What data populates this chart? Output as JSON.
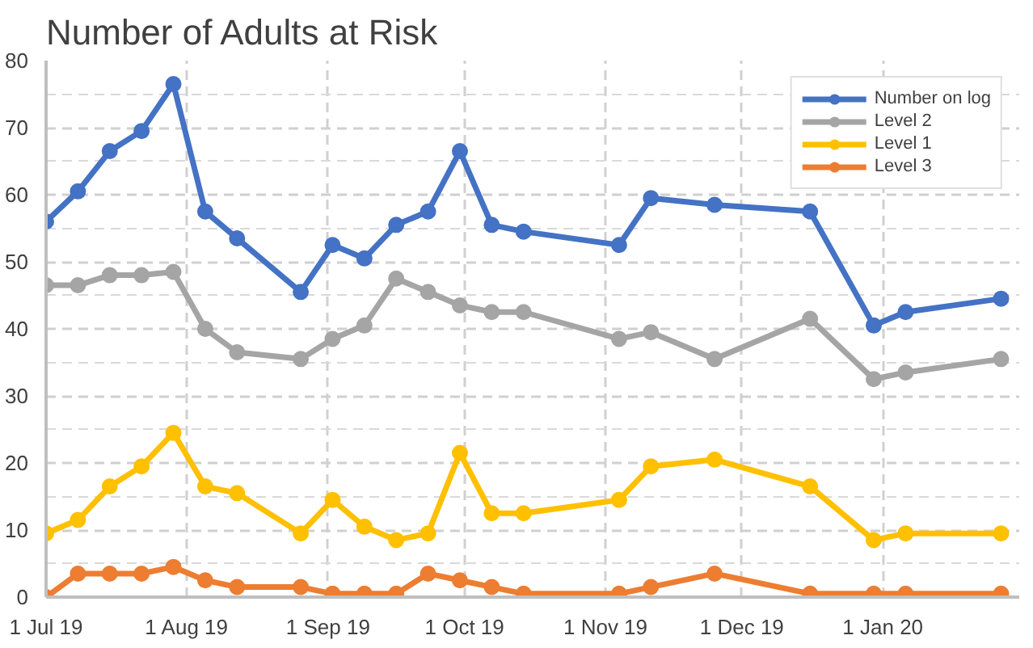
{
  "chart_data": {
    "type": "line",
    "title": "Number of Adults at Risk",
    "x": [
      "2019-07-01",
      "2019-07-08",
      "2019-07-15",
      "2019-07-22",
      "2019-07-29",
      "2019-08-05",
      "2019-08-12",
      "2019-08-26",
      "2019-09-02",
      "2019-09-09",
      "2019-09-16",
      "2019-09-23",
      "2019-09-30",
      "2019-10-07",
      "2019-10-14",
      "2019-11-04",
      "2019-11-11",
      "2019-11-25",
      "2019-12-16",
      "2019-12-30",
      "2020-01-06",
      "2020-01-27"
    ],
    "series": [
      {
        "name": "Number on log",
        "color": "#4472c4",
        "values": [
          56,
          60.5,
          66.5,
          69.5,
          76.5,
          57.5,
          53.5,
          45.5,
          52.5,
          50.5,
          55.5,
          57.5,
          66.5,
          55.5,
          54.5,
          52.5,
          59.5,
          58.5,
          57.5,
          40.5,
          42.5,
          44.5
        ]
      },
      {
        "name": "Level 2",
        "color": "#a5a5a5",
        "values": [
          46.5,
          46.5,
          48,
          48,
          48.5,
          40,
          36.5,
          35.5,
          38.5,
          40.5,
          47.5,
          45.5,
          43.5,
          42.5,
          42.5,
          38.5,
          39.5,
          35.5,
          41.5,
          32.5,
          33.5,
          35.5
        ]
      },
      {
        "name": "Level 1",
        "color": "#ffc000",
        "values": [
          9.5,
          11.5,
          16.5,
          19.5,
          24.5,
          16.5,
          15.5,
          9.5,
          14.5,
          10.5,
          8.5,
          9.5,
          21.5,
          12.5,
          12.5,
          14.5,
          19.5,
          20.5,
          16.5,
          8.5,
          9.5,
          9.5
        ]
      },
      {
        "name": "Level 3",
        "color": "#ed7d31",
        "values": [
          0,
          3.5,
          3.5,
          3.5,
          4.5,
          2.5,
          1.5,
          1.5,
          0.5,
          0.5,
          0.5,
          3.5,
          2.5,
          1.5,
          0.5,
          0.5,
          1.5,
          3.5,
          0.5,
          0.5,
          0.5,
          0.5
        ]
      }
    ],
    "xlim": [
      "2019-07-01",
      "2020-01-31"
    ],
    "xticks": [
      {
        "value": "2019-07-01",
        "label": "1 Jul 19"
      },
      {
        "value": "2019-08-01",
        "label": "1 Aug 19"
      },
      {
        "value": "2019-09-01",
        "label": "1 Sep 19"
      },
      {
        "value": "2019-10-01",
        "label": "1 Oct 19"
      },
      {
        "value": "2019-11-01",
        "label": "1 Nov 19"
      },
      {
        "value": "2019-12-01",
        "label": "1 Dec 19"
      },
      {
        "value": "2020-01-01",
        "label": "1 Jan 20"
      }
    ],
    "ylim": [
      0,
      80
    ],
    "yticks": [
      0,
      10,
      20,
      30,
      40,
      50,
      60,
      70,
      80
    ],
    "grid": true,
    "legend": "top right",
    "marker": "circle",
    "line_style": "solid"
  }
}
